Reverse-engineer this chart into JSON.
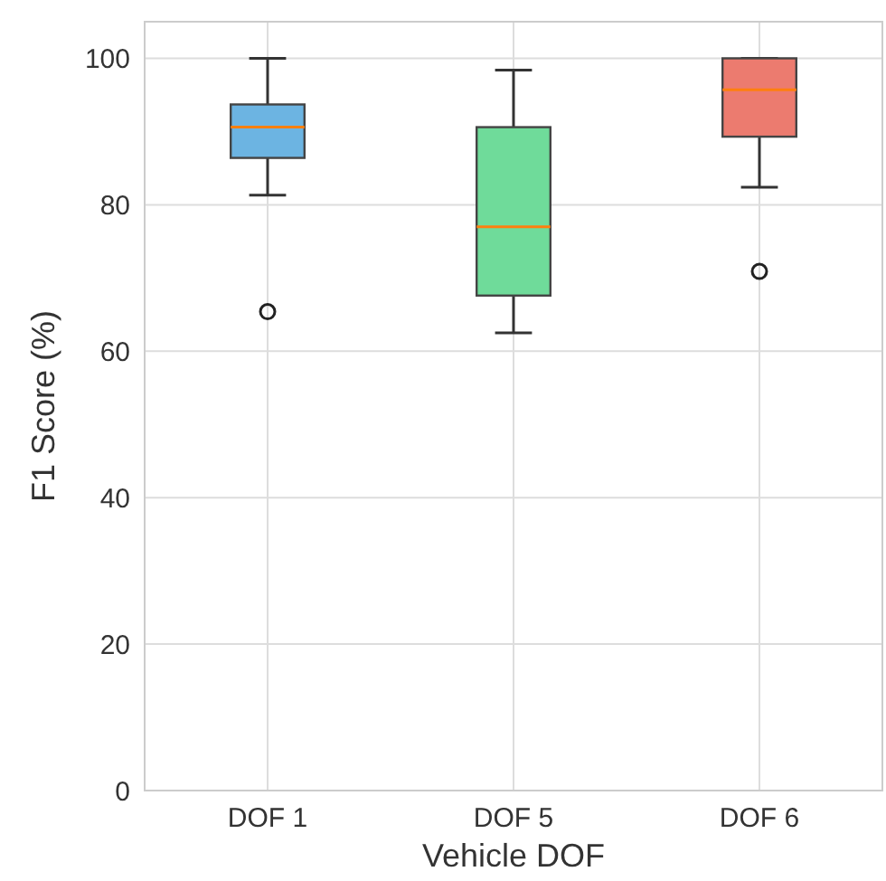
{
  "chart_data": {
    "type": "box",
    "xlabel": "Vehicle DOF",
    "ylabel": "F1 Score (%)",
    "categories": [
      "DOF 1",
      "DOF 5",
      "DOF 6"
    ],
    "colors": [
      "#6cb4e2",
      "#6fdb9a",
      "#ec7b6f"
    ],
    "boxes": [
      {
        "low": 81.3,
        "q1": 86.4,
        "median": 90.6,
        "q3": 93.7,
        "high": 100,
        "outliers": [
          65.4
        ]
      },
      {
        "low": 62.5,
        "q1": 67.6,
        "median": 77.0,
        "q3": 90.6,
        "high": 98.4
      },
      {
        "low": 82.4,
        "q1": 89.3,
        "median": 95.7,
        "q3": 100,
        "high": 100,
        "outliers": [
          70.9
        ]
      }
    ],
    "ylim": [
      0,
      105
    ],
    "yticks": [
      0,
      20,
      40,
      60,
      80,
      100
    ],
    "grid": true
  }
}
